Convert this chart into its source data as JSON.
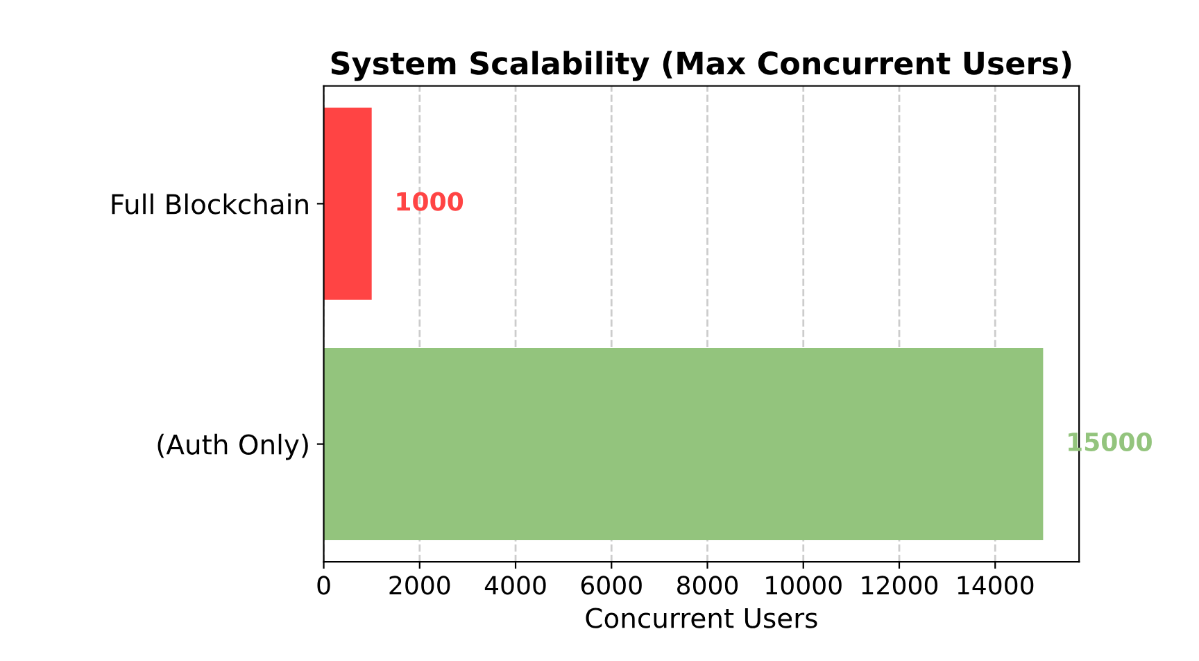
{
  "chart_data": {
    "type": "bar",
    "orientation": "horizontal",
    "title": "System Scalability (Max Concurrent Users)",
    "xlabel": "Concurrent Users",
    "categories": [
      "Full Blockchain",
      "(Auth Only)"
    ],
    "values": [
      1000,
      15000
    ],
    "colors": [
      "#ff4444",
      "#93c47d"
    ],
    "xlim": [
      0,
      15750
    ],
    "xticks": [
      0,
      2000,
      4000,
      6000,
      8000,
      10000,
      12000,
      14000
    ],
    "grid": "x",
    "data_labels": true,
    "legend": false
  }
}
